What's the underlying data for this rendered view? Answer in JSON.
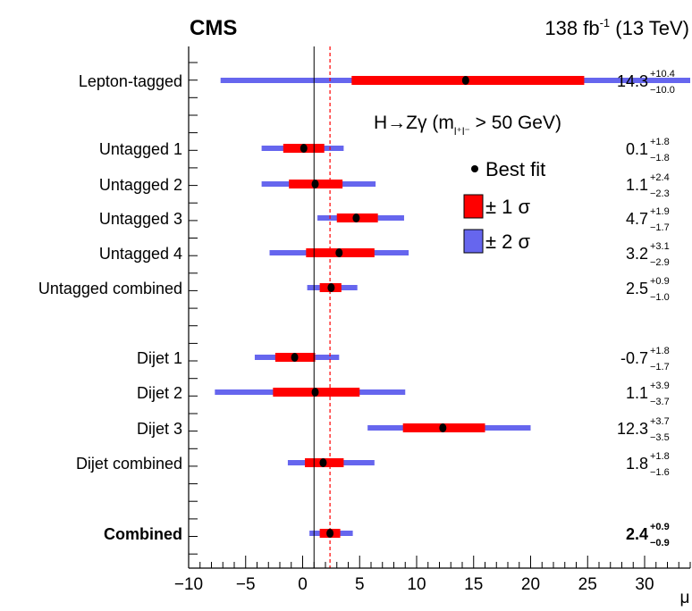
{
  "header": {
    "experiment": "CMS",
    "lumi_value": "138 fb",
    "lumi_exp": "-1",
    "lumi_energy": " (13 TeV)"
  },
  "legend": {
    "process": "H→Zγ (m",
    "process_sub": "l⁺l⁻",
    "process_tail": " > 50 GeV)",
    "best_fit": "Best fit",
    "one_sigma": "± 1 σ",
    "two_sigma": "± 2 σ"
  },
  "colors": {
    "one_sigma": "#ff0000",
    "two_sigma": "#6666ee",
    "sm_line": "#ff0000",
    "zero_line": "#000000",
    "marker": "#000000"
  },
  "chart_data": {
    "type": "forest",
    "xlabel": "μ",
    "xlim": [
      -10,
      34
    ],
    "xticks": [
      -10,
      -5,
      0,
      5,
      10,
      15,
      20,
      25,
      30
    ],
    "xtick_labels": [
      "−10",
      "−5",
      "0",
      "5",
      "10",
      "15",
      "20",
      "25",
      "30"
    ],
    "reference_lines": {
      "mu_equals_1": 1,
      "combined_best_fit_dashed": 2.4
    },
    "categories": [
      {
        "label": "Lepton-tagged",
        "value": 14.3,
        "plus": "+10.4",
        "minus": "−10.0",
        "value_text": "14.3",
        "one_sigma": [
          4.3,
          24.7
        ],
        "two_sigma": [
          -7.2,
          35.0
        ],
        "bold": false
      },
      {
        "label": "Untagged 1",
        "value": 0.1,
        "plus": "+1.8",
        "minus": "−1.8",
        "value_text": "0.1",
        "one_sigma": [
          -1.7,
          1.9
        ],
        "two_sigma": [
          -3.6,
          3.6
        ],
        "bold": false
      },
      {
        "label": "Untagged 2",
        "value": 1.1,
        "plus": "+2.4",
        "minus": "−2.3",
        "value_text": "1.1",
        "one_sigma": [
          -1.2,
          3.5
        ],
        "two_sigma": [
          -3.6,
          6.4
        ],
        "bold": false
      },
      {
        "label": "Untagged 3",
        "value": 4.7,
        "plus": "+1.9",
        "minus": "−1.7",
        "value_text": "4.7",
        "one_sigma": [
          3.0,
          6.6
        ],
        "two_sigma": [
          1.3,
          8.9
        ],
        "bold": false
      },
      {
        "label": "Untagged 4",
        "value": 3.2,
        "plus": "+3.1",
        "minus": "−2.9",
        "value_text": "3.2",
        "one_sigma": [
          0.3,
          6.3
        ],
        "two_sigma": [
          -2.9,
          9.3
        ],
        "bold": false
      },
      {
        "label": "Untagged combined",
        "value": 2.5,
        "plus": "+0.9",
        "minus": "−1.0",
        "value_text": "2.5",
        "one_sigma": [
          1.5,
          3.4
        ],
        "two_sigma": [
          0.4,
          4.8
        ],
        "bold": false
      },
      {
        "label": "Dijet 1",
        "value": -0.7,
        "plus": "+1.8",
        "minus": "−1.7",
        "value_text": "-0.7",
        "one_sigma": [
          -2.4,
          1.1
        ],
        "two_sigma": [
          -4.2,
          3.2
        ],
        "bold": false
      },
      {
        "label": "Dijet 2",
        "value": 1.1,
        "plus": "+3.9",
        "minus": "−3.7",
        "value_text": "1.1",
        "one_sigma": [
          -2.6,
          5.0
        ],
        "two_sigma": [
          -7.7,
          9.0
        ],
        "bold": false
      },
      {
        "label": "Dijet 3",
        "value": 12.3,
        "plus": "+3.7",
        "minus": "−3.5",
        "value_text": "12.3",
        "one_sigma": [
          8.8,
          16.0
        ],
        "two_sigma": [
          5.7,
          20.0
        ],
        "bold": false
      },
      {
        "label": "Dijet combined",
        "value": 1.8,
        "plus": "+1.8",
        "minus": "−1.6",
        "value_text": "1.8",
        "one_sigma": [
          0.2,
          3.6
        ],
        "two_sigma": [
          -1.3,
          6.3
        ],
        "bold": false
      },
      {
        "label": "Combined",
        "value": 2.4,
        "plus": "+0.9",
        "minus": "−0.9",
        "value_text": "2.4",
        "one_sigma": [
          1.5,
          3.3
        ],
        "two_sigma": [
          0.6,
          4.4
        ],
        "bold": true
      }
    ]
  }
}
